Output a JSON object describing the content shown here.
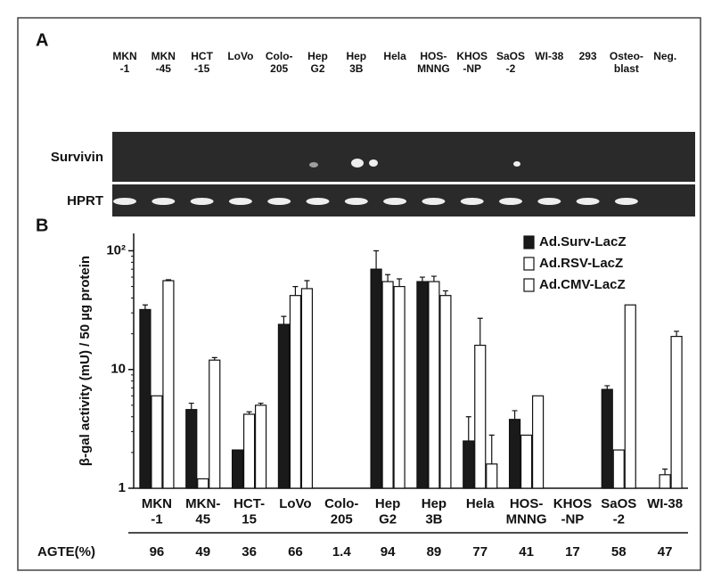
{
  "panel_a": {
    "label": "A",
    "lanes": [
      "MKN\n-1",
      "MKN\n-45",
      "HCT\n-15",
      "LoVo",
      "Colo-\n205",
      "Hep\nG2",
      "Hep\n3B",
      "Hela",
      "HOS-\nMNNG",
      "KHOS\n-NP",
      "SaOS\n-2",
      "WI-38",
      "293",
      "Osteo-\nblast",
      "Neg."
    ],
    "rows": [
      "Survivin",
      "HPRT"
    ]
  },
  "chart_data": {
    "type": "bar",
    "panel_label": "B",
    "y_label": "β-gal activity (mU) / 50 µg protein",
    "categories": [
      "MKN\n-1",
      "MKN-\n45",
      "HCT-\n15",
      "LoVo",
      "Colo-\n205",
      "Hep\nG2",
      "Hep\n3B",
      "Hela",
      "HOS-\nMNNG",
      "KHOS\n-NP",
      "SaOS\n-2",
      "WI-38"
    ],
    "series": [
      {
        "name": "Ad.Surv-LacZ",
        "color": "#1a1a1a",
        "values": [
          32,
          4.6,
          2.1,
          24,
          null,
          70,
          55,
          2.5,
          3.8,
          null,
          6.8,
          null
        ],
        "errors": [
          3,
          0.6,
          null,
          4,
          null,
          30,
          5,
          1.5,
          0.7,
          null,
          0.5,
          null
        ]
      },
      {
        "name": "Ad.RSV-LacZ",
        "color": "#ffffff",
        "values": [
          6,
          1.2,
          4.2,
          42,
          null,
          55,
          55,
          16,
          2.8,
          null,
          2.1,
          1.3
        ],
        "errors": [
          null,
          null,
          0.2,
          8,
          null,
          8,
          6,
          11,
          null,
          null,
          null,
          0.15
        ]
      },
      {
        "name": "Ad.CMV-LacZ",
        "color": "#ffffff",
        "values": [
          56,
          12,
          5,
          48,
          null,
          50,
          42,
          1.6,
          6,
          null,
          35,
          19
        ],
        "errors": [
          1,
          0.6,
          0.2,
          8,
          null,
          8,
          4,
          1.2,
          null,
          null,
          null,
          2
        ]
      }
    ],
    "log_scale": true,
    "ylim": [
      1,
      140
    ],
    "yticks": [
      1,
      10,
      {
        "value": 100,
        "label": "10²"
      }
    ],
    "legend": "upper right",
    "agte": {
      "label": "AGTE(%)",
      "values": [
        96,
        49,
        36,
        66,
        1.4,
        94,
        89,
        77,
        41,
        17,
        58,
        47
      ]
    }
  }
}
